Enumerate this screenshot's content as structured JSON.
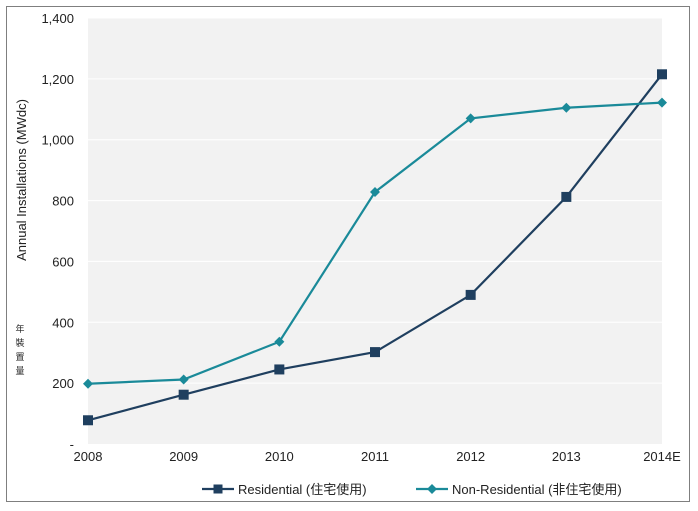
{
  "chart_data": {
    "type": "line",
    "categories": [
      "2008",
      "2009",
      "2010",
      "2011",
      "2012",
      "2013",
      "2014E"
    ],
    "series": [
      {
        "name": "Residential (住宅使用)",
        "values": [
          78,
          162,
          245,
          302,
          490,
          812,
          1215
        ],
        "color": "#1f3f5f",
        "marker": "square"
      },
      {
        "name": "Non-Residential (非住宅使用)",
        "values": [
          198,
          212,
          336,
          828,
          1070,
          1105,
          1122
        ],
        "color": "#1a8a99",
        "marker": "diamond"
      }
    ],
    "ylabel": "Annual Installations (MWdc)",
    "ylabel_cjk": [
      "年",
      "裝",
      "置",
      "量"
    ],
    "ylim": [
      0,
      1400
    ],
    "yticks": [
      "-",
      "200",
      "400",
      "600",
      "800",
      "1,000",
      "1,200",
      "1,400"
    ],
    "grid": true,
    "legend_position": "bottom",
    "plot_background": "#f2f2f2"
  }
}
